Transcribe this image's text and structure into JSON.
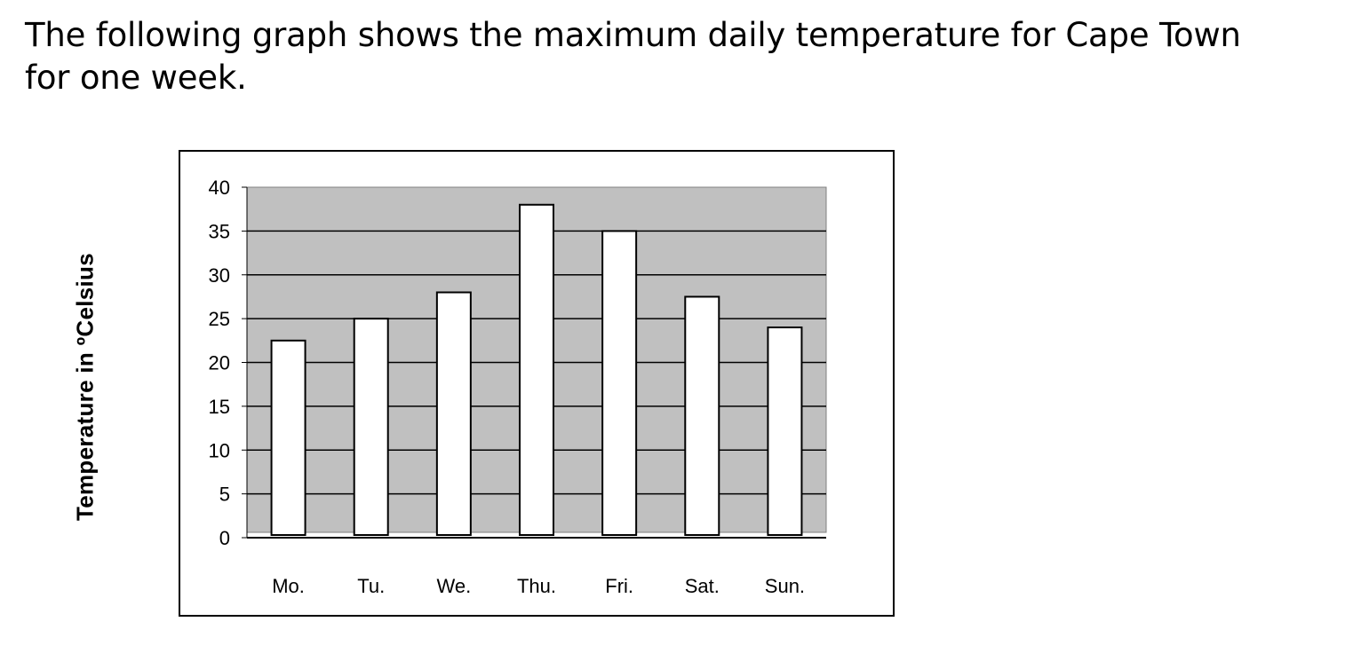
{
  "question": {
    "line1": "The following graph shows the maximum daily temperature for Cape Town",
    "line2": "for one week."
  },
  "chart_data": {
    "type": "bar",
    "categories": [
      "Mo.",
      "Tu.",
      "We.",
      "Thu.",
      "Fri.",
      "Sat.",
      "Sun."
    ],
    "values": [
      22.5,
      25,
      28,
      38,
      35,
      27.5,
      24
    ],
    "ylabel": "Temperature in ºCelsius",
    "xlabel": "",
    "ylim": [
      0,
      40
    ],
    "yticks": [
      "0",
      "5",
      "10",
      "15",
      "20",
      "25",
      "30",
      "35",
      "40"
    ],
    "grid": true,
    "colors": {
      "plot_background": "#c0c0c0",
      "bar_fill": "#ffffff",
      "bar_stroke": "#000000"
    }
  }
}
